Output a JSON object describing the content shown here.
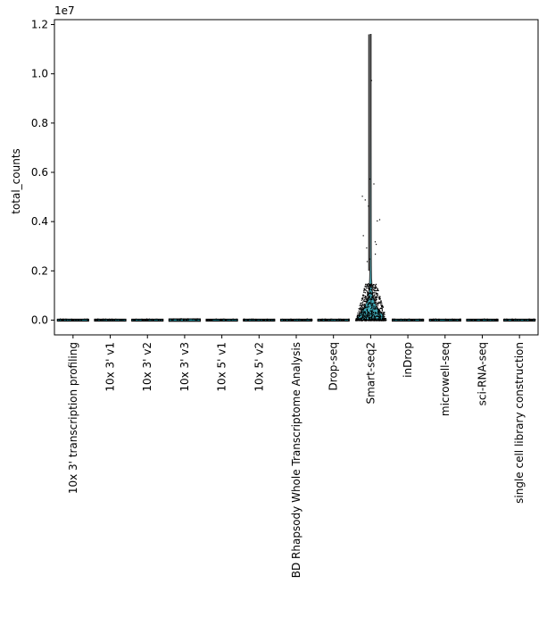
{
  "chart_data": {
    "type": "violin",
    "title": "",
    "xlabel": "",
    "ylabel": "total_counts",
    "y_offset_label": "1e7",
    "ylim": [
      -600000,
      12200000
    ],
    "ytick_values": [
      0,
      2000000,
      4000000,
      6000000,
      8000000,
      10000000,
      12000000
    ],
    "ytick_labels": [
      "0.0",
      "0.2",
      "0.4",
      "0.6",
      "0.8",
      "1.0",
      "1.2"
    ],
    "grid": false,
    "categories": [
      "10x 3' transcription profiling",
      "10x 3' v1",
      "10x 3' v2",
      "10x 3' v3",
      "10x 5' v1",
      "10x 5' v2",
      "BD Rhapsody Whole Transcriptome Analysis",
      "Drop-seq",
      "Smart-seq2",
      "inDrop",
      "microwell-seq",
      "sci-RNA-seq",
      "single cell library construction"
    ],
    "violin_color": "#1f9fae",
    "point_color": "#000000",
    "series": [
      {
        "name": "10x 3' transcription profiling",
        "max": 20000
      },
      {
        "name": "10x 3' v1",
        "max": 20000
      },
      {
        "name": "10x 3' v2",
        "max": 40000
      },
      {
        "name": "10x 3' v3",
        "max": 90000
      },
      {
        "name": "10x 5' v1",
        "max": 40000
      },
      {
        "name": "10x 5' v2",
        "max": 40000
      },
      {
        "name": "BD Rhapsody Whole Transcriptome Analysis",
        "max": 40000
      },
      {
        "name": "Drop-seq",
        "max": 15000
      },
      {
        "name": "Smart-seq2",
        "max": 11600000,
        "bulk_upper": 1500000,
        "outliers": [
          9750000,
          5750000,
          5550000,
          5050000,
          4900000,
          4650000,
          4100000,
          4050000,
          3450000,
          3200000,
          3100000,
          2950000,
          2700000,
          2500000,
          2400000
        ]
      },
      {
        "name": "inDrop",
        "max": 20000
      },
      {
        "name": "microwell-seq",
        "max": 20000
      },
      {
        "name": "sci-RNA-seq",
        "max": 15000
      },
      {
        "name": "single cell library construction",
        "max": 20000
      }
    ]
  }
}
